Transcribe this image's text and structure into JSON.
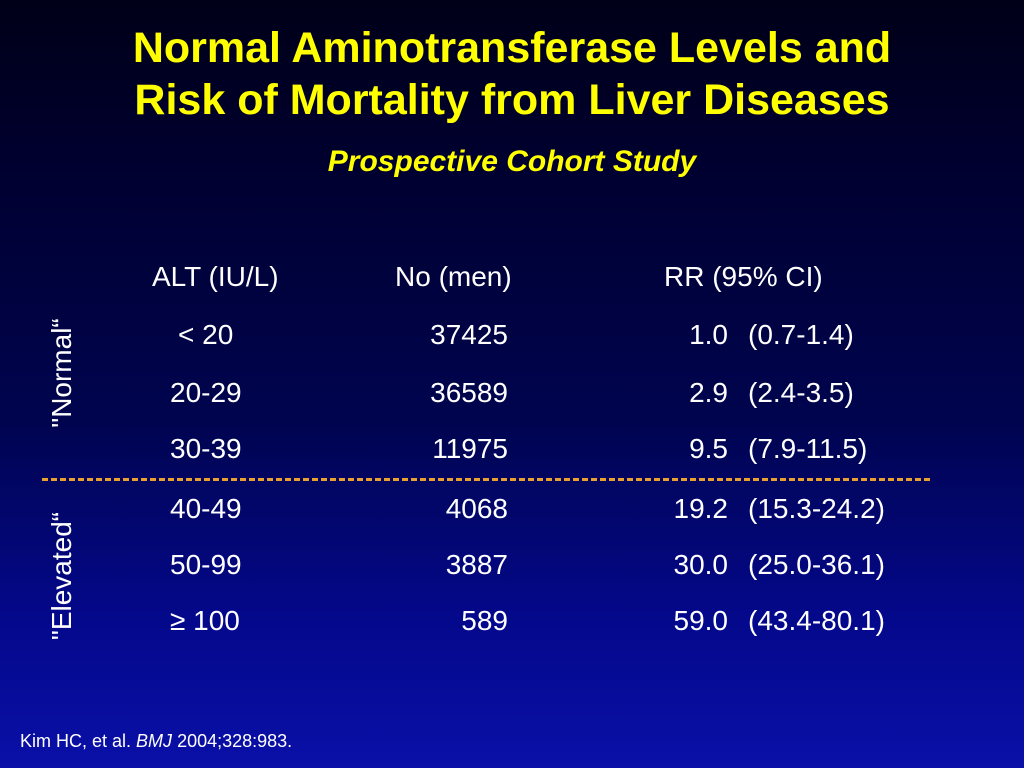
{
  "slide": {
    "title_line1": "Normal Aminotransferase Levels and",
    "title_line2": "Risk of Mortality from Liver Diseases",
    "subtitle": "Prospective Cohort Study",
    "colors": {
      "title": "#ffff00",
      "text": "#ffffff",
      "divider": "#e8a030",
      "background_top": "#000018",
      "background_bottom": "#0a10a8"
    }
  },
  "table": {
    "headers": {
      "alt": "ALT (IU/L)",
      "no": "No (men)",
      "rr": "RR (95% CI)"
    },
    "rows": [
      {
        "alt": "< 20",
        "no": "37425",
        "rr": "1.0",
        "ci": "(0.7-1.4)"
      },
      {
        "alt": "20-29",
        "no": "36589",
        "rr": "2.9",
        "ci": "(2.4-3.5)"
      },
      {
        "alt": "30-39",
        "no": "11975",
        "rr": "9.5",
        "ci": "(7.9-11.5)"
      },
      {
        "alt": "40-49",
        "no": "4068",
        "rr": "19.2",
        "ci": "(15.3-24.2)"
      },
      {
        "alt": "50-99",
        "no": "3887",
        "rr": "30.0",
        "ci": "(25.0-36.1)"
      },
      {
        "alt": "≥ 100",
        "no": "589",
        "rr": "59.0",
        "ci": "(43.4-80.1)"
      }
    ],
    "group_labels": {
      "normal": "\"Normal“",
      "elevated": "\"Elevated“"
    }
  },
  "citation": {
    "authors": "Kim HC, et al.",
    "journal": "BMJ",
    "details": "2004;328:983."
  }
}
